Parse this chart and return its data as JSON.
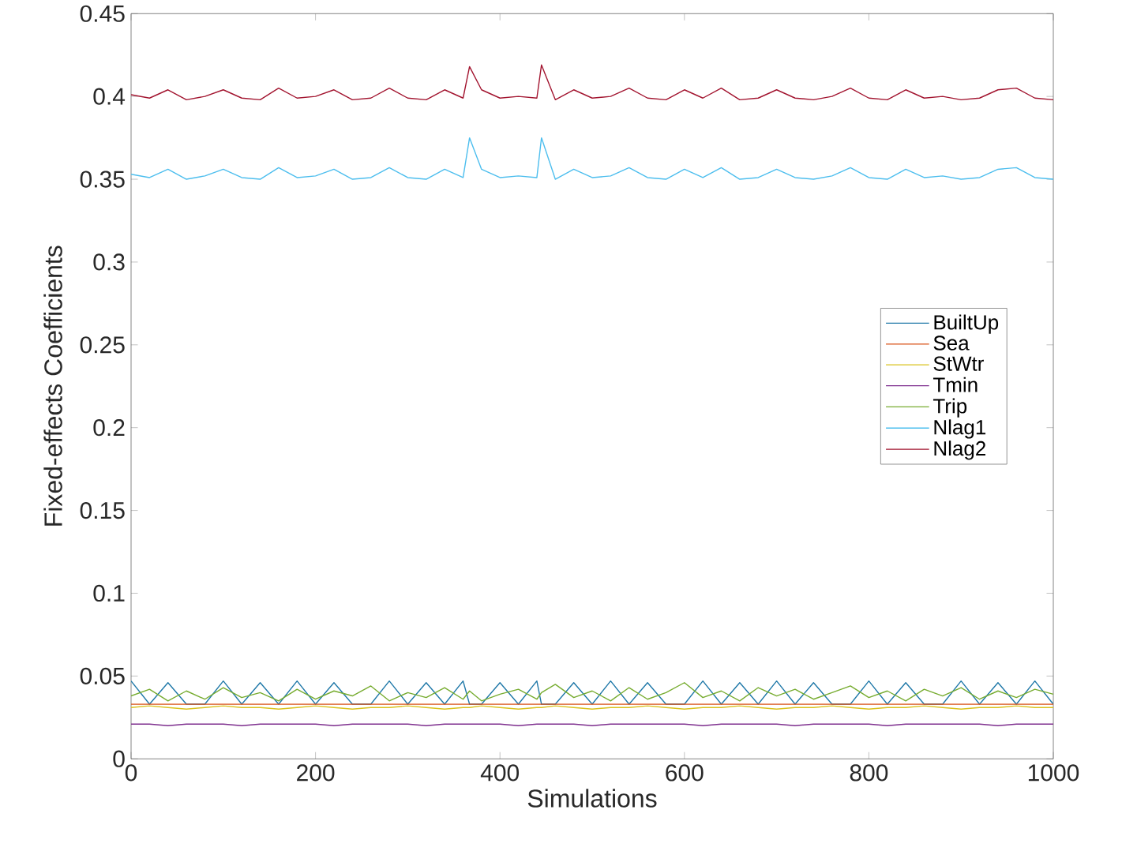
{
  "chart_data": {
    "type": "line",
    "xlabel": "Simulations",
    "ylabel": "Fixed-effects Coefficients",
    "x": [
      0,
      20,
      40,
      60,
      80,
      100,
      120,
      140,
      160,
      180,
      200,
      220,
      240,
      260,
      280,
      300,
      320,
      340,
      360,
      367,
      380,
      400,
      420,
      440,
      445,
      460,
      480,
      500,
      520,
      540,
      560,
      580,
      600,
      620,
      640,
      660,
      680,
      700,
      720,
      740,
      760,
      780,
      800,
      820,
      840,
      860,
      880,
      900,
      920,
      940,
      960,
      980,
      1000
    ],
    "series": [
      {
        "name": "BuiltUp",
        "color": "#1f78a8",
        "values": [
          0.047,
          0.033,
          0.046,
          0.033,
          0.033,
          0.047,
          0.033,
          0.046,
          0.033,
          0.047,
          0.033,
          0.046,
          0.033,
          0.033,
          0.047,
          0.033,
          0.046,
          0.033,
          0.047,
          0.033,
          0.033,
          0.046,
          0.033,
          0.047,
          0.033,
          0.033,
          0.046,
          0.033,
          0.047,
          0.033,
          0.046,
          0.033,
          0.033,
          0.047,
          0.033,
          0.046,
          0.033,
          0.047,
          0.033,
          0.046,
          0.033,
          0.033,
          0.047,
          0.033,
          0.046,
          0.033,
          0.033,
          0.047,
          0.033,
          0.046,
          0.033,
          0.047,
          0.033
        ]
      },
      {
        "name": "Sea",
        "color": "#d95319",
        "values": [
          0.033,
          0.033,
          0.033,
          0.033,
          0.033,
          0.033,
          0.033,
          0.033,
          0.033,
          0.033,
          0.033,
          0.033,
          0.033,
          0.033,
          0.033,
          0.033,
          0.033,
          0.033,
          0.033,
          0.033,
          0.033,
          0.033,
          0.033,
          0.033,
          0.033,
          0.033,
          0.033,
          0.033,
          0.033,
          0.033,
          0.033,
          0.033,
          0.033,
          0.033,
          0.033,
          0.033,
          0.033,
          0.033,
          0.033,
          0.033,
          0.033,
          0.033,
          0.033,
          0.033,
          0.033,
          0.033,
          0.033,
          0.033,
          0.033,
          0.033,
          0.033,
          0.033,
          0.033
        ]
      },
      {
        "name": "StWtr",
        "color": "#d9c21e",
        "values": [
          0.031,
          0.032,
          0.031,
          0.03,
          0.031,
          0.032,
          0.031,
          0.031,
          0.03,
          0.031,
          0.032,
          0.031,
          0.03,
          0.031,
          0.031,
          0.032,
          0.031,
          0.03,
          0.031,
          0.031,
          0.032,
          0.031,
          0.03,
          0.031,
          0.031,
          0.032,
          0.031,
          0.03,
          0.031,
          0.031,
          0.032,
          0.031,
          0.03,
          0.031,
          0.031,
          0.032,
          0.031,
          0.03,
          0.031,
          0.031,
          0.032,
          0.031,
          0.03,
          0.031,
          0.031,
          0.032,
          0.031,
          0.03,
          0.031,
          0.031,
          0.032,
          0.031,
          0.031
        ]
      },
      {
        "name": "Tmin",
        "color": "#7e2f8e",
        "values": [
          0.021,
          0.021,
          0.02,
          0.021,
          0.021,
          0.021,
          0.02,
          0.021,
          0.021,
          0.021,
          0.021,
          0.02,
          0.021,
          0.021,
          0.021,
          0.021,
          0.02,
          0.021,
          0.021,
          0.021,
          0.021,
          0.021,
          0.02,
          0.021,
          0.021,
          0.021,
          0.021,
          0.02,
          0.021,
          0.021,
          0.021,
          0.021,
          0.021,
          0.02,
          0.021,
          0.021,
          0.021,
          0.021,
          0.02,
          0.021,
          0.021,
          0.021,
          0.021,
          0.02,
          0.021,
          0.021,
          0.021,
          0.021,
          0.021,
          0.02,
          0.021,
          0.021,
          0.021
        ]
      },
      {
        "name": "Trip",
        "color": "#77ac30",
        "values": [
          0.038,
          0.042,
          0.035,
          0.041,
          0.036,
          0.043,
          0.037,
          0.04,
          0.035,
          0.042,
          0.036,
          0.041,
          0.038,
          0.044,
          0.035,
          0.04,
          0.037,
          0.043,
          0.036,
          0.041,
          0.035,
          0.039,
          0.042,
          0.036,
          0.04,
          0.045,
          0.037,
          0.041,
          0.035,
          0.043,
          0.036,
          0.04,
          0.046,
          0.037,
          0.041,
          0.035,
          0.043,
          0.038,
          0.042,
          0.036,
          0.04,
          0.044,
          0.037,
          0.041,
          0.035,
          0.042,
          0.038,
          0.043,
          0.036,
          0.041,
          0.037,
          0.042,
          0.039
        ]
      },
      {
        "name": "Nlag1",
        "color": "#4dbeee",
        "values": [
          0.353,
          0.351,
          0.356,
          0.35,
          0.352,
          0.356,
          0.351,
          0.35,
          0.357,
          0.351,
          0.352,
          0.356,
          0.35,
          0.351,
          0.357,
          0.351,
          0.35,
          0.356,
          0.351,
          0.375,
          0.356,
          0.351,
          0.352,
          0.351,
          0.375,
          0.35,
          0.356,
          0.351,
          0.352,
          0.357,
          0.351,
          0.35,
          0.356,
          0.351,
          0.357,
          0.35,
          0.351,
          0.356,
          0.351,
          0.35,
          0.352,
          0.357,
          0.351,
          0.35,
          0.356,
          0.351,
          0.352,
          0.35,
          0.351,
          0.356,
          0.357,
          0.351,
          0.35
        ]
      },
      {
        "name": "Nlag2",
        "color": "#a2142f",
        "values": [
          0.401,
          0.399,
          0.404,
          0.398,
          0.4,
          0.404,
          0.399,
          0.398,
          0.405,
          0.399,
          0.4,
          0.404,
          0.398,
          0.399,
          0.405,
          0.399,
          0.398,
          0.404,
          0.399,
          0.418,
          0.404,
          0.399,
          0.4,
          0.399,
          0.419,
          0.398,
          0.404,
          0.399,
          0.4,
          0.405,
          0.399,
          0.398,
          0.404,
          0.399,
          0.405,
          0.398,
          0.399,
          0.404,
          0.399,
          0.398,
          0.4,
          0.405,
          0.399,
          0.398,
          0.404,
          0.399,
          0.4,
          0.398,
          0.399,
          0.404,
          0.405,
          0.399,
          0.398
        ]
      }
    ],
    "xlim": [
      0,
      1000
    ],
    "ylim": [
      0,
      0.45
    ],
    "xticks": [
      0,
      200,
      400,
      600,
      800,
      1000
    ],
    "yticks": [
      0,
      0.05,
      0.1,
      0.15,
      0.2,
      0.25,
      0.3,
      0.35,
      0.4,
      0.45
    ],
    "legend": "right",
    "grid": false,
    "marker": "none",
    "line_style": "solid"
  }
}
